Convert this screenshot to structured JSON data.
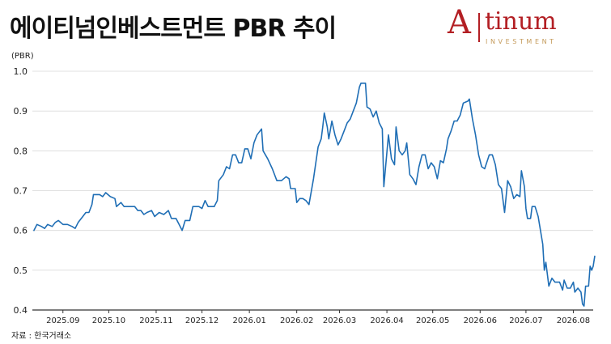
{
  "title": "에이티넘인베스트먼트 PBR 추이",
  "logo": {
    "mark": "A",
    "word": "tinum",
    "sub": "INVESTMENT",
    "color": "#b31f24",
    "sub_color": "#c49a5a"
  },
  "source": "자료 : 한국거래소",
  "chart_data": {
    "type": "line",
    "ylabel": "(PBR)",
    "ylim": [
      0.4,
      1.0
    ],
    "yticks": [
      0.4,
      0.5,
      0.6,
      0.7,
      0.8,
      0.9,
      1.0
    ],
    "ytick_labels": [
      "0.4",
      "0.5",
      "0.6",
      "0.7",
      "0.8",
      "0.9",
      "1.0"
    ],
    "xlim": [
      "2025-08-12",
      "2026-08-14"
    ],
    "xticks": [
      "2025-09-01",
      "2025-10-01",
      "2025-11-01",
      "2025-12-01",
      "2026-01-01",
      "2026-02-01",
      "2026-03-01",
      "2026-04-01",
      "2026-05-01",
      "2026-06-01",
      "2026-07-01",
      "2026-08-01"
    ],
    "xtick_labels": [
      "2025.09",
      "2025.10",
      "2025.11",
      "2025.12",
      "2026.01",
      "2026.02",
      "2026.03",
      "2026.04",
      "2026.05",
      "2026.06",
      "2026.07",
      "2026.08"
    ],
    "grid": "horizontal",
    "line_color": "#1f6eb5",
    "series": [
      {
        "values": [
          [
            "2025-08-13",
            0.6
          ],
          [
            "2025-08-15",
            0.615
          ],
          [
            "2025-08-18",
            0.61
          ],
          [
            "2025-08-20",
            0.605
          ],
          [
            "2025-08-22",
            0.615
          ],
          [
            "2025-08-25",
            0.61
          ],
          [
            "2025-08-27",
            0.62
          ],
          [
            "2025-08-29",
            0.625
          ],
          [
            "2025-09-01",
            0.615
          ],
          [
            "2025-09-04",
            0.615
          ],
          [
            "2025-09-07",
            0.61
          ],
          [
            "2025-09-09",
            0.605
          ],
          [
            "2025-09-11",
            0.62
          ],
          [
            "2025-09-14",
            0.635
          ],
          [
            "2025-09-16",
            0.645
          ],
          [
            "2025-09-18",
            0.645
          ],
          [
            "2025-09-20",
            0.665
          ],
          [
            "2025-09-21",
            0.69
          ],
          [
            "2025-09-25",
            0.69
          ],
          [
            "2025-09-27",
            0.685
          ],
          [
            "2025-09-29",
            0.695
          ],
          [
            "2025-10-02",
            0.685
          ],
          [
            "2025-10-05",
            0.68
          ],
          [
            "2025-10-06",
            0.66
          ],
          [
            "2025-10-09",
            0.67
          ],
          [
            "2025-10-11",
            0.66
          ],
          [
            "2025-10-18",
            0.66
          ],
          [
            "2025-10-20",
            0.65
          ],
          [
            "2025-10-22",
            0.65
          ],
          [
            "2025-10-24",
            0.64
          ],
          [
            "2025-10-26",
            0.645
          ],
          [
            "2025-10-29",
            0.65
          ],
          [
            "2025-10-31",
            0.635
          ],
          [
            "2025-11-03",
            0.645
          ],
          [
            "2025-11-06",
            0.64
          ],
          [
            "2025-11-09",
            0.65
          ],
          [
            "2025-11-11",
            0.63
          ],
          [
            "2025-11-14",
            0.63
          ],
          [
            "2025-11-16",
            0.615
          ],
          [
            "2025-11-18",
            0.6
          ],
          [
            "2025-11-20",
            0.625
          ],
          [
            "2025-11-23",
            0.625
          ],
          [
            "2025-11-25",
            0.66
          ],
          [
            "2025-11-29",
            0.66
          ],
          [
            "2025-12-01",
            0.655
          ],
          [
            "2025-12-03",
            0.675
          ],
          [
            "2025-12-05",
            0.66
          ],
          [
            "2025-12-09",
            0.66
          ],
          [
            "2025-12-11",
            0.675
          ],
          [
            "2025-12-12",
            0.725
          ],
          [
            "2025-12-15",
            0.74
          ],
          [
            "2025-12-17",
            0.76
          ],
          [
            "2025-12-19",
            0.755
          ],
          [
            "2025-12-21",
            0.79
          ],
          [
            "2025-12-23",
            0.79
          ],
          [
            "2025-12-25",
            0.77
          ],
          [
            "2025-12-27",
            0.77
          ],
          [
            "2025-12-29",
            0.805
          ],
          [
            "2025-12-31",
            0.805
          ],
          [
            "2026-01-02",
            0.78
          ],
          [
            "2026-01-04",
            0.82
          ],
          [
            "2026-01-06",
            0.84
          ],
          [
            "2026-01-09",
            0.855
          ],
          [
            "2026-01-10",
            0.8
          ],
          [
            "2026-01-13",
            0.78
          ],
          [
            "2026-01-16",
            0.755
          ],
          [
            "2026-01-19",
            0.725
          ],
          [
            "2026-01-22",
            0.725
          ],
          [
            "2026-01-25",
            0.735
          ],
          [
            "2026-01-27",
            0.73
          ],
          [
            "2026-01-28",
            0.705
          ],
          [
            "2026-01-31",
            0.705
          ],
          [
            "2026-02-01",
            0.67
          ],
          [
            "2026-02-03",
            0.68
          ],
          [
            "2026-02-05",
            0.68
          ],
          [
            "2026-02-07",
            0.675
          ],
          [
            "2026-02-09",
            0.665
          ],
          [
            "2026-02-12",
            0.73
          ],
          [
            "2026-02-15",
            0.81
          ],
          [
            "2026-02-17",
            0.83
          ],
          [
            "2026-02-18",
            0.86
          ],
          [
            "2026-02-19",
            0.895
          ],
          [
            "2026-02-21",
            0.86
          ],
          [
            "2026-02-22",
            0.83
          ],
          [
            "2026-02-24",
            0.875
          ],
          [
            "2026-02-26",
            0.84
          ],
          [
            "2026-02-28",
            0.815
          ],
          [
            "2026-03-02",
            0.83
          ],
          [
            "2026-03-04",
            0.85
          ],
          [
            "2026-03-06",
            0.87
          ],
          [
            "2026-03-08",
            0.88
          ],
          [
            "2026-03-10",
            0.9
          ],
          [
            "2026-03-12",
            0.92
          ],
          [
            "2026-03-14",
            0.96
          ],
          [
            "2026-03-15",
            0.97
          ],
          [
            "2026-03-18",
            0.97
          ],
          [
            "2026-03-19",
            0.91
          ],
          [
            "2026-03-21",
            0.905
          ],
          [
            "2026-03-23",
            0.885
          ],
          [
            "2026-03-25",
            0.9
          ],
          [
            "2026-03-27",
            0.87
          ],
          [
            "2026-03-29",
            0.855
          ],
          [
            "2026-03-30",
            0.71
          ],
          [
            "2026-04-02",
            0.84
          ],
          [
            "2026-04-04",
            0.78
          ],
          [
            "2026-04-06",
            0.765
          ],
          [
            "2026-04-07",
            0.86
          ],
          [
            "2026-04-09",
            0.8
          ],
          [
            "2026-04-11",
            0.79
          ],
          [
            "2026-04-13",
            0.8
          ],
          [
            "2026-04-14",
            0.82
          ],
          [
            "2026-04-16",
            0.74
          ],
          [
            "2026-04-18",
            0.73
          ],
          [
            "2026-04-20",
            0.715
          ],
          [
            "2026-04-22",
            0.76
          ],
          [
            "2026-04-24",
            0.79
          ],
          [
            "2026-04-26",
            0.79
          ],
          [
            "2026-04-28",
            0.755
          ],
          [
            "2026-04-30",
            0.77
          ],
          [
            "2026-05-02",
            0.76
          ],
          [
            "2026-05-04",
            0.73
          ],
          [
            "2026-05-06",
            0.775
          ],
          [
            "2026-05-08",
            0.77
          ],
          [
            "2026-05-10",
            0.805
          ],
          [
            "2026-05-11",
            0.83
          ],
          [
            "2026-05-13",
            0.85
          ],
          [
            "2026-05-15",
            0.875
          ],
          [
            "2026-05-17",
            0.875
          ],
          [
            "2026-05-19",
            0.89
          ],
          [
            "2026-05-21",
            0.92
          ],
          [
            "2026-05-24",
            0.925
          ],
          [
            "2026-05-25",
            0.93
          ],
          [
            "2026-05-27",
            0.88
          ],
          [
            "2026-05-29",
            0.84
          ],
          [
            "2026-05-31",
            0.79
          ],
          [
            "2026-06-02",
            0.76
          ],
          [
            "2026-06-04",
            0.755
          ],
          [
            "2026-06-07",
            0.79
          ],
          [
            "2026-06-09",
            0.79
          ],
          [
            "2026-06-11",
            0.765
          ],
          [
            "2026-06-13",
            0.715
          ],
          [
            "2026-06-15",
            0.705
          ],
          [
            "2026-06-17",
            0.645
          ],
          [
            "2026-06-19",
            0.725
          ],
          [
            "2026-06-21",
            0.71
          ],
          [
            "2026-06-23",
            0.68
          ],
          [
            "2026-06-25",
            0.69
          ],
          [
            "2026-06-27",
            0.685
          ],
          [
            "2026-06-28",
            0.75
          ],
          [
            "2026-06-30",
            0.71
          ],
          [
            "2026-07-01",
            0.655
          ],
          [
            "2026-07-02",
            0.63
          ],
          [
            "2026-07-04",
            0.63
          ],
          [
            "2026-07-05",
            0.66
          ],
          [
            "2026-07-07",
            0.66
          ],
          [
            "2026-07-09",
            0.635
          ],
          [
            "2026-07-12",
            0.565
          ],
          [
            "2026-07-13",
            0.5
          ],
          [
            "2026-07-14",
            0.52
          ],
          [
            "2026-07-16",
            0.46
          ],
          [
            "2026-07-18",
            0.48
          ],
          [
            "2026-07-20",
            0.47
          ],
          [
            "2026-07-23",
            0.47
          ],
          [
            "2026-07-25",
            0.45
          ],
          [
            "2026-07-26",
            0.475
          ],
          [
            "2026-07-28",
            0.455
          ],
          [
            "2026-07-30",
            0.455
          ],
          [
            "2026-08-01",
            0.47
          ],
          [
            "2026-08-02",
            0.445
          ],
          [
            "2026-08-04",
            0.455
          ],
          [
            "2026-08-06",
            0.445
          ],
          [
            "2026-08-07",
            0.415
          ],
          [
            "2026-08-08",
            0.41
          ],
          [
            "2026-08-09",
            0.46
          ],
          [
            "2026-08-10",
            0.46
          ],
          [
            "2026-08-11",
            0.46
          ],
          [
            "2026-08-12",
            0.51
          ],
          [
            "2026-08-13",
            0.5
          ],
          [
            "2026-08-14",
            0.51
          ],
          [
            "2026-08-15",
            0.535
          ]
        ]
      }
    ]
  }
}
